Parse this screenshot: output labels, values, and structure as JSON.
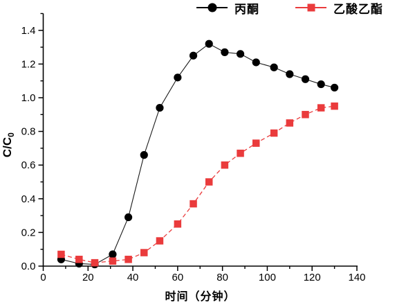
{
  "chart_data": {
    "type": "line",
    "title": "",
    "xlabel": "时间（分钟）",
    "ylabel": "C/C",
    "ylabel_sub": "0",
    "xlim": [
      0,
      140
    ],
    "ylim": [
      0,
      1.5
    ],
    "x_major_ticks": [
      0,
      20,
      40,
      60,
      80,
      100,
      120,
      140
    ],
    "x_minor_ticks": [
      10,
      30,
      50,
      70,
      90,
      110,
      130
    ],
    "y_major_ticks": [
      "0.0",
      "0.2",
      "0.4",
      "0.6",
      "0.8",
      "1.0",
      "1.2",
      "1.4"
    ],
    "y_minor_ticks": [
      0.1,
      0.3,
      0.5,
      0.7,
      0.9,
      1.1,
      1.3,
      1.5
    ],
    "grid": false,
    "legend_position": "top-center",
    "axis_color": "#000000",
    "x": [
      8,
      16,
      23,
      31,
      38,
      45,
      52,
      60,
      67,
      74,
      81,
      88,
      95,
      103,
      110,
      117,
      124,
      130
    ],
    "series": [
      {
        "name": "丙酮",
        "color": "#000000",
        "line_color": "#1a1a1a",
        "marker": "circle",
        "line_style": "solid",
        "values": [
          0.04,
          0.015,
          0.01,
          0.07,
          0.29,
          0.66,
          0.94,
          1.12,
          1.25,
          1.32,
          1.27,
          1.26,
          1.21,
          1.18,
          1.14,
          1.11,
          1.08,
          1.06
        ]
      },
      {
        "name": "乙酸乙酯",
        "color": "#ea3b3c",
        "line_color": "#ea3b3c",
        "marker": "square",
        "line_style": "dashed",
        "values": [
          0.07,
          0.04,
          0.02,
          0.03,
          0.04,
          0.08,
          0.15,
          0.25,
          0.37,
          0.5,
          0.6,
          0.67,
          0.73,
          0.79,
          0.85,
          0.9,
          0.94,
          0.95
        ]
      }
    ]
  }
}
